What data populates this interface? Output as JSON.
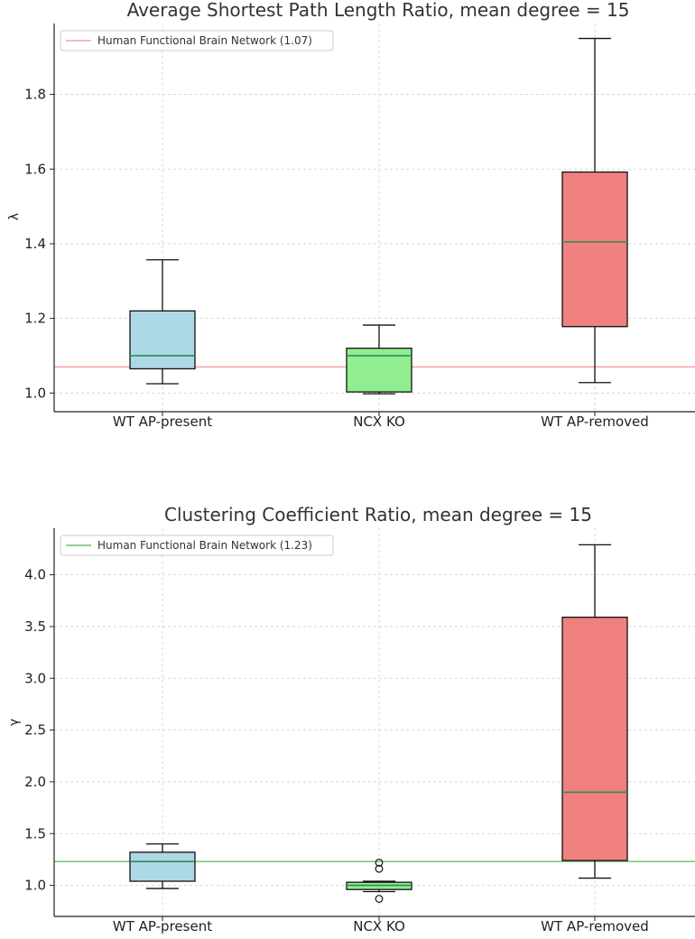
{
  "chart_data": [
    {
      "type": "box",
      "title": "Average Shortest Path Length Ratio, mean degree = 15",
      "xlabel": "",
      "ylabel": "λ",
      "ylim": [
        0.95,
        1.99
      ],
      "yticks": [
        1.0,
        1.2,
        1.4,
        1.6,
        1.8
      ],
      "ytick_labels": [
        "1.0",
        "1.2",
        "1.4",
        "1.6",
        "1.8"
      ],
      "grid": true,
      "legend_position": "top-left",
      "categories": [
        "WT AP-present",
        "NCX KO",
        "WT AP-removed"
      ],
      "boxes": [
        {
          "category": "WT AP-present",
          "whisker_low": 1.025,
          "q1": 1.065,
          "median": 1.1,
          "q3": 1.22,
          "whisker_high": 1.357,
          "outliers": [],
          "color": "#add8e6"
        },
        {
          "category": "NCX KO",
          "whisker_low": 0.998,
          "q1": 1.003,
          "median": 1.1,
          "q3": 1.12,
          "whisker_high": 1.182,
          "outliers": [],
          "color": "#90ee90"
        },
        {
          "category": "WT AP-removed",
          "whisker_low": 1.028,
          "q1": 1.178,
          "median": 1.405,
          "q3": 1.592,
          "whisker_high": 1.95,
          "outliers": [],
          "color": "#f08080"
        }
      ],
      "reference_line": {
        "label": "Human Functional Brain Network (1.07)",
        "value": 1.07,
        "color": "#f4a0a0"
      }
    },
    {
      "type": "box",
      "title": "Clustering Coefficient Ratio, mean degree = 15",
      "xlabel": "",
      "ylabel": "γ",
      "ylim": [
        0.7,
        4.45
      ],
      "yticks": [
        1.0,
        1.5,
        2.0,
        2.5,
        3.0,
        3.5,
        4.0
      ],
      "ytick_labels": [
        "1.0",
        "1.5",
        "2.0",
        "2.5",
        "3.0",
        "3.5",
        "4.0"
      ],
      "grid": true,
      "legend_position": "top-left",
      "categories": [
        "WT AP-present",
        "NCX KO",
        "WT AP-removed"
      ],
      "boxes": [
        {
          "category": "WT AP-present",
          "whisker_low": 0.97,
          "q1": 1.04,
          "median": 1.23,
          "q3": 1.32,
          "whisker_high": 1.4,
          "outliers": [],
          "color": "#add8e6"
        },
        {
          "category": "NCX KO",
          "whisker_low": 0.94,
          "q1": 0.96,
          "median": 1.0,
          "q3": 1.03,
          "whisker_high": 1.04,
          "outliers": [
            1.22,
            1.16,
            0.87
          ],
          "color": "#90ee90"
        },
        {
          "category": "WT AP-removed",
          "whisker_low": 1.07,
          "q1": 1.24,
          "median": 1.9,
          "q3": 3.59,
          "whisker_high": 4.29,
          "outliers": [],
          "color": "#f08080"
        }
      ],
      "reference_line": {
        "label": "Human Functional Brain Network (1.23)",
        "value": 1.23,
        "color": "#6abf6a"
      }
    }
  ],
  "colors": {
    "median_line": "#2e8b57",
    "box_edge": "#111111",
    "grid": "#cfcfcf"
  }
}
